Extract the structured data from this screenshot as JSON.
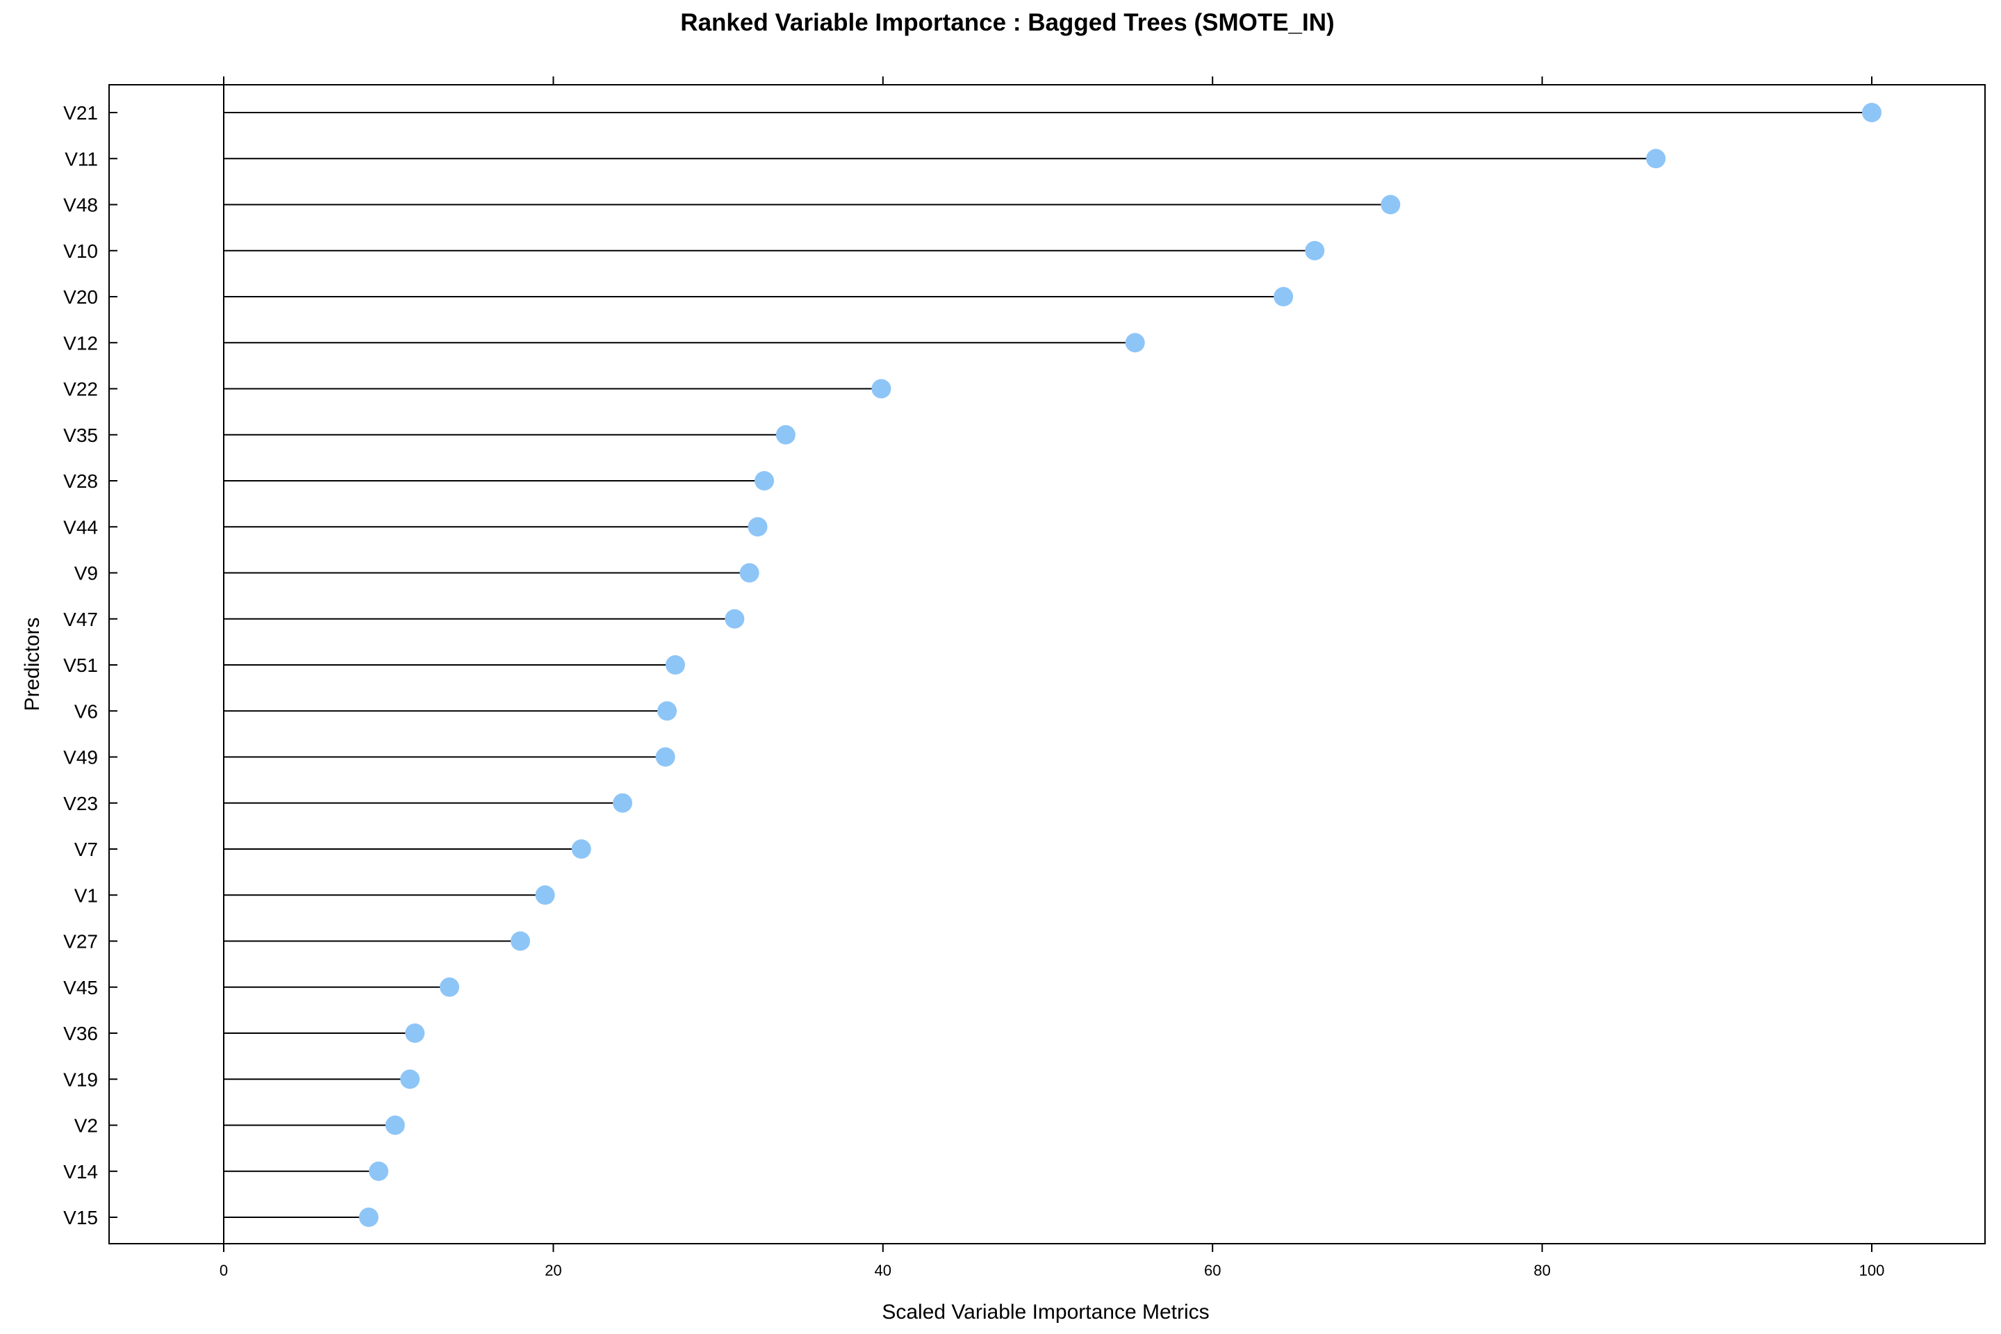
{
  "chart_data": {
    "type": "dot",
    "title": "Ranked Variable Importance : Bagged Trees (SMOTE_IN)",
    "xlabel": "Scaled Variable Importance Metrics",
    "ylabel": "Predictors",
    "xlim": [
      -7,
      107
    ],
    "xticks": [
      0,
      20,
      40,
      60,
      80,
      100
    ],
    "grid": false,
    "point_color": "#8ec5f7",
    "line_color": "#000000",
    "categories": [
      "V21",
      "V11",
      "V48",
      "V10",
      "V20",
      "V12",
      "V22",
      "V35",
      "V28",
      "V44",
      "V9",
      "V47",
      "V51",
      "V6",
      "V49",
      "V23",
      "V7",
      "V1",
      "V27",
      "V45",
      "V36",
      "V19",
      "V2",
      "V14",
      "V15"
    ],
    "values": [
      100,
      86.9,
      70.8,
      66.2,
      64.3,
      55.3,
      39.9,
      34.1,
      32.8,
      32.4,
      31.9,
      31.0,
      27.4,
      26.9,
      26.8,
      24.2,
      21.7,
      19.5,
      18.0,
      13.7,
      11.6,
      11.3,
      10.4,
      9.4,
      8.8
    ]
  }
}
